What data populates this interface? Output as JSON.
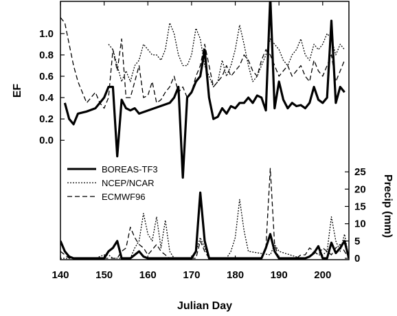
{
  "chart_data": {
    "type": "line",
    "xlabel": "Julian Day",
    "xlim": [
      140,
      206
    ],
    "x_ticks": [
      140,
      150,
      160,
      170,
      180,
      190,
      200
    ],
    "ef_axis": {
      "label": "EF",
      "ticks": [
        "0.0",
        "0.2",
        "0.4",
        "0.6",
        "0.8",
        "1.0"
      ],
      "range": [
        -0.05,
        1.25
      ]
    },
    "precip_axis": {
      "label": "Precip (mm)",
      "ticks": [
        "0",
        "5",
        "10",
        "15",
        "20",
        "25"
      ],
      "range": [
        0,
        29
      ]
    },
    "legend": {
      "placement": "center-left",
      "entries": [
        "BOREAS-TF3",
        "NCEP/NCAR",
        "ECMWF96"
      ]
    },
    "series": [
      {
        "name": "BOREAS-TF3",
        "color": "#000000",
        "ef": {
          "x": [
            141,
            142,
            143,
            144,
            146,
            148,
            150,
            151,
            152,
            153,
            154,
            155,
            156,
            157,
            158,
            165,
            166,
            167,
            168,
            169,
            170,
            171,
            172,
            173,
            174,
            175,
            176,
            177,
            178,
            179,
            180,
            181,
            182,
            183,
            184,
            185,
            186,
            187,
            188,
            189,
            190,
            191,
            192,
            193,
            194,
            195,
            196,
            197,
            198,
            199,
            200,
            201,
            202,
            203,
            204,
            205
          ],
          "y": [
            0.35,
            0.2,
            0.15,
            0.25,
            0.27,
            0.3,
            0.4,
            0.5,
            0.5,
            -0.15,
            0.38,
            0.3,
            0.28,
            0.3,
            0.25,
            0.35,
            0.4,
            0.5,
            -0.35,
            0.4,
            0.45,
            0.55,
            0.6,
            0.85,
            0.4,
            0.2,
            0.22,
            0.3,
            0.25,
            0.32,
            0.3,
            0.35,
            0.35,
            0.4,
            0.35,
            0.42,
            0.4,
            0.28,
            1.35,
            0.3,
            0.55,
            0.38,
            0.3,
            0.35,
            0.32,
            0.33,
            0.3,
            0.35,
            0.5,
            0.38,
            0.35,
            0.4,
            1.12,
            0.35,
            0.5,
            0.45
          ]
        },
        "precip": {
          "x": [
            140,
            141,
            142,
            143,
            150,
            151,
            152,
            153,
            154,
            156,
            157,
            158,
            159,
            160,
            170,
            171,
            172,
            173,
            174,
            185,
            186,
            187,
            188,
            189,
            190,
            196,
            197,
            198,
            199,
            200,
            201,
            202,
            203,
            204,
            205,
            206
          ],
          "y": [
            5,
            2,
            0.5,
            0,
            0,
            2,
            3,
            5,
            0,
            0,
            1,
            2,
            0.5,
            0,
            0,
            2,
            19,
            5,
            0,
            0,
            0,
            3,
            7,
            2,
            0,
            0,
            0.5,
            1.5,
            3.5,
            0,
            0,
            4.5,
            1.5,
            3,
            5,
            0
          ]
        }
      },
      {
        "name": "NCEP/NCAR",
        "color": "#000000",
        "ef": {
          "x": [
            151,
            152,
            153,
            154,
            155,
            156,
            157,
            158,
            159,
            160,
            161,
            162,
            163,
            164,
            165,
            166,
            167,
            168,
            169,
            170,
            171,
            172,
            173,
            174,
            175,
            176,
            177,
            178,
            179,
            180,
            181,
            182,
            183,
            184,
            185,
            186,
            187,
            188,
            189,
            190,
            191,
            192,
            193,
            194,
            195,
            196,
            197,
            198,
            199,
            200,
            201,
            202,
            203,
            204,
            205
          ],
          "y": [
            0.9,
            0.85,
            0.7,
            0.55,
            0.65,
            0.55,
            0.7,
            0.75,
            0.9,
            0.85,
            0.8,
            0.8,
            0.75,
            0.85,
            1.1,
            1.0,
            0.8,
            0.7,
            0.7,
            0.8,
            1.05,
            0.95,
            0.7,
            0.6,
            0.5,
            0.55,
            0.75,
            0.6,
            0.7,
            0.85,
            1.08,
            0.9,
            0.7,
            0.55,
            0.6,
            0.7,
            0.8,
            0.95,
            0.9,
            0.85,
            0.75,
            0.7,
            0.8,
            0.85,
            0.95,
            0.8,
            0.75,
            0.9,
            0.85,
            0.9,
            1.0,
            0.95,
            0.8,
            0.9,
            0.85
          ]
        },
        "precip": {
          "x": [
            140,
            145,
            148,
            150,
            151,
            152,
            156,
            157,
            158,
            159,
            160,
            161,
            162,
            163,
            164,
            165,
            166,
            170,
            171,
            172,
            173,
            174,
            178,
            179,
            180,
            181,
            182,
            183,
            188,
            189,
            190,
            195,
            196,
            197,
            198,
            199,
            200,
            201,
            202,
            203,
            204,
            205,
            206
          ],
          "y": [
            0,
            0,
            0,
            1,
            1,
            0,
            0,
            3,
            5,
            13,
            7,
            5,
            12,
            3,
            11,
            2,
            0,
            0,
            2,
            6,
            3,
            0,
            0,
            2,
            6,
            17,
            8,
            2,
            1,
            4,
            2,
            0,
            0,
            0.5,
            2,
            1,
            1,
            2,
            12,
            5,
            2,
            7,
            0
          ]
        }
      },
      {
        "name": "ECMWF96",
        "color": "#000000",
        "ef": {
          "x": [
            140,
            141,
            142,
            143,
            144,
            145,
            146,
            147,
            148,
            149,
            150,
            151,
            152,
            153,
            154,
            155,
            156,
            157,
            158,
            159,
            160,
            161,
            162,
            163,
            164,
            165,
            166,
            167,
            168,
            169,
            170,
            171,
            172,
            173,
            174,
            175,
            176,
            177,
            178,
            179,
            180,
            181,
            182,
            183,
            184,
            185,
            186,
            187,
            188,
            189,
            190,
            191,
            192,
            193,
            194,
            195,
            196,
            197,
            198,
            199,
            200,
            201,
            202,
            203,
            204,
            205
          ],
          "y": [
            1.15,
            1.1,
            0.9,
            0.7,
            0.55,
            0.45,
            0.35,
            0.4,
            0.45,
            0.35,
            0.3,
            0.4,
            0.85,
            0.65,
            0.95,
            0.4,
            0.4,
            0.55,
            0.7,
            0.4,
            0.42,
            0.55,
            0.35,
            0.38,
            0.45,
            0.5,
            0.6,
            0.45,
            0.5,
            0.4,
            0.45,
            0.6,
            0.7,
            0.9,
            0.7,
            0.5,
            0.55,
            0.6,
            0.7,
            0.6,
            0.65,
            0.7,
            0.8,
            0.75,
            0.65,
            0.6,
            0.75,
            0.85,
            0.8,
            0.7,
            0.6,
            0.65,
            0.7,
            0.6,
            0.65,
            0.7,
            0.6,
            0.55,
            0.75,
            0.65,
            0.6,
            0.7,
            0.8,
            0.55,
            0.65,
            0.75
          ]
        },
        "precip": {
          "x": [
            140,
            141,
            142,
            153,
            154,
            155,
            156,
            157,
            158,
            159,
            160,
            162,
            163,
            164,
            165,
            171,
            172,
            173,
            174,
            186,
            187,
            188,
            189,
            190,
            194,
            195,
            196,
            197,
            198,
            199,
            200,
            201,
            202,
            203,
            204,
            205,
            206
          ],
          "y": [
            2,
            1,
            0,
            0,
            2,
            3,
            9,
            6,
            4,
            3,
            1,
            4,
            2,
            1,
            0,
            0,
            5,
            2,
            0,
            0,
            3,
            26,
            4,
            0,
            0,
            1,
            1,
            3,
            2,
            1,
            3,
            2,
            1,
            3,
            4,
            2,
            0
          ]
        }
      }
    ]
  }
}
